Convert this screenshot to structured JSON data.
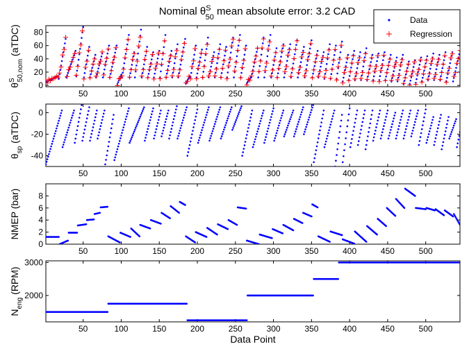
{
  "figure": {
    "title_prefix": "Nominal θ",
    "title_sup": "S",
    "title_sub": "50",
    "title_suffix": " mean absolute error: 3.2 CAD"
  },
  "colors": {
    "data": "#0000ff",
    "regression": "#ff0000",
    "axis": "#000000"
  },
  "chart_data": [
    {
      "type": "scatter",
      "id": "theta50",
      "ylabel_main": "θ",
      "ylabel_sup": "S",
      "ylabel_sub": "50,nom",
      "ylabel_suffix": " (aTDC)",
      "xlabel": "",
      "xlim": [
        1,
        545
      ],
      "ylim": [
        -2,
        90
      ],
      "xticks": [
        50,
        100,
        150,
        200,
        250,
        300,
        350,
        400,
        450,
        500
      ],
      "yticks": [
        0,
        20,
        40,
        60,
        80
      ],
      "legend": {
        "placement": "top-right",
        "entries": [
          "Data",
          "Regression"
        ]
      },
      "series": [
        {
          "name": "Data",
          "marker": "dot"
        },
        {
          "name": "Regression",
          "marker": "plus"
        }
      ],
      "segments": [
        [
          1,
          17,
          5,
          14
        ],
        [
          18,
          27,
          10,
          70
        ],
        [
          28,
          40,
          12,
          52
        ],
        [
          41,
          50,
          14,
          88
        ],
        [
          51,
          58,
          12,
          58
        ],
        [
          59,
          66,
          12,
          46
        ],
        [
          67,
          75,
          12,
          48
        ],
        [
          76,
          84,
          12,
          60
        ],
        [
          85,
          94,
          12,
          60
        ],
        [
          95,
          100,
          2,
          16
        ],
        [
          101,
          110,
          12,
          76
        ],
        [
          111,
          117,
          12,
          50
        ],
        [
          118,
          126,
          12,
          84
        ],
        [
          127,
          134,
          12,
          58
        ],
        [
          135,
          142,
          12,
          50
        ],
        [
          143,
          150,
          12,
          52
        ],
        [
          151,
          158,
          12,
          76
        ],
        [
          159,
          166,
          12,
          52
        ],
        [
          167,
          174,
          12,
          62
        ],
        [
          175,
          184,
          12,
          70
        ],
        [
          185,
          190,
          3,
          14
        ],
        [
          191,
          198,
          12,
          60
        ],
        [
          199,
          206,
          12,
          54
        ],
        [
          207,
          214,
          12,
          72
        ],
        [
          215,
          222,
          12,
          50
        ],
        [
          223,
          230,
          12,
          62
        ],
        [
          231,
          238,
          12,
          58
        ],
        [
          239,
          247,
          12,
          72
        ],
        [
          248,
          256,
          12,
          76
        ],
        [
          257,
          264,
          12,
          60
        ],
        [
          265,
          270,
          3,
          12
        ],
        [
          271,
          279,
          12,
          56
        ],
        [
          280,
          287,
          12,
          72
        ],
        [
          288,
          296,
          12,
          76
        ],
        [
          297,
          304,
          12,
          56
        ],
        [
          305,
          313,
          12,
          62
        ],
        [
          314,
          322,
          12,
          62
        ],
        [
          323,
          331,
          12,
          68
        ],
        [
          332,
          340,
          12,
          58
        ],
        [
          341,
          350,
          12,
          68
        ],
        [
          351,
          358,
          12,
          52
        ],
        [
          359,
          366,
          12,
          50
        ],
        [
          367,
          374,
          10,
          62
        ],
        [
          375,
          382,
          10,
          60
        ],
        [
          383,
          390,
          10,
          66
        ],
        [
          391,
          398,
          6,
          46
        ],
        [
          399,
          406,
          8,
          52
        ],
        [
          407,
          414,
          8,
          50
        ],
        [
          415,
          422,
          8,
          56
        ],
        [
          423,
          430,
          8,
          46
        ],
        [
          431,
          438,
          8,
          48
        ],
        [
          439,
          446,
          8,
          50
        ],
        [
          447,
          454,
          8,
          46
        ],
        [
          455,
          462,
          6,
          42
        ],
        [
          463,
          470,
          6,
          46
        ],
        [
          471,
          478,
          2,
          36
        ],
        [
          479,
          486,
          2,
          38
        ],
        [
          487,
          494,
          4,
          42
        ],
        [
          495,
          502,
          6,
          44
        ],
        [
          503,
          510,
          8,
          48
        ],
        [
          511,
          518,
          8,
          46
        ],
        [
          519,
          526,
          8,
          50
        ],
        [
          527,
          535,
          6,
          50
        ],
        [
          536,
          545,
          6,
          52
        ]
      ]
    },
    {
      "type": "scatter",
      "id": "thetasp",
      "ylabel_main": "θ",
      "ylabel_sup": "",
      "ylabel_sub": "sp",
      "ylabel_suffix": " (aTDC)",
      "xlabel": "",
      "xlim": [
        1,
        545
      ],
      "ylim": [
        -50,
        8
      ],
      "xticks": [
        50,
        100,
        150,
        200,
        250,
        300,
        350,
        400,
        450,
        500
      ],
      "yticks": [
        -40,
        -20,
        0
      ],
      "segments": [
        [
          1,
          22,
          -48,
          2
        ],
        [
          23,
          38,
          -32,
          2
        ],
        [
          39,
          48,
          -28,
          7
        ],
        [
          49,
          58,
          -26,
          5
        ],
        [
          59,
          68,
          -26,
          2
        ],
        [
          69,
          78,
          -24,
          2
        ],
        [
          79,
          90,
          -48,
          -2
        ],
        [
          91,
          110,
          -44,
          4
        ],
        [
          111,
          130,
          -28,
          5
        ],
        [
          131,
          142,
          -26,
          4
        ],
        [
          143,
          152,
          -24,
          2
        ],
        [
          153,
          162,
          -22,
          2
        ],
        [
          163,
          173,
          -24,
          6
        ],
        [
          174,
          186,
          -24,
          5
        ],
        [
          187,
          200,
          -40,
          3
        ],
        [
          201,
          215,
          -28,
          5
        ],
        [
          216,
          230,
          -26,
          5
        ],
        [
          231,
          245,
          -24,
          5
        ],
        [
          246,
          258,
          -16,
          6
        ],
        [
          259,
          272,
          -40,
          2
        ],
        [
          273,
          287,
          -32,
          2
        ],
        [
          288,
          300,
          -28,
          4
        ],
        [
          301,
          313,
          -26,
          2
        ],
        [
          314,
          326,
          -22,
          2
        ],
        [
          327,
          339,
          -22,
          5
        ],
        [
          340,
          352,
          -20,
          7
        ],
        [
          353,
          366,
          -46,
          2
        ],
        [
          367,
          380,
          -32,
          2
        ],
        [
          381,
          390,
          -50,
          -2
        ],
        [
          391,
          400,
          -46,
          4
        ],
        [
          401,
          410,
          -32,
          2
        ],
        [
          411,
          420,
          -30,
          2
        ],
        [
          421,
          430,
          -34,
          2
        ],
        [
          431,
          440,
          -26,
          2
        ],
        [
          441,
          450,
          -24,
          2
        ],
        [
          451,
          460,
          -24,
          0
        ],
        [
          461,
          470,
          -24,
          2
        ],
        [
          471,
          480,
          -24,
          2
        ],
        [
          481,
          490,
          -22,
          2
        ],
        [
          491,
          500,
          -30,
          3
        ],
        [
          501,
          510,
          -28,
          -4
        ],
        [
          511,
          520,
          -30,
          -2
        ],
        [
          521,
          530,
          -34,
          -4
        ],
        [
          531,
          540,
          -24,
          -6
        ],
        [
          541,
          545,
          -32,
          -18
        ]
      ]
    },
    {
      "type": "scatter",
      "id": "nmep",
      "ylabel_main": "NMEP (bar)",
      "ylabel_sup": "",
      "ylabel_sub": "",
      "ylabel_suffix": "",
      "xlabel": "",
      "xlim": [
        1,
        545
      ],
      "ylim": [
        0,
        10
      ],
      "xticks": [
        50,
        100,
        150,
        200,
        250,
        300,
        350,
        400,
        450,
        500
      ],
      "yticks": [
        0,
        2,
        4,
        6,
        8
      ],
      "segments": [
        [
          1,
          18,
          1.2,
          1.2
        ],
        [
          19,
          30,
          0.0,
          0.6
        ],
        [
          31,
          42,
          1.9,
          1.9
        ],
        [
          43,
          54,
          3.1,
          3.3
        ],
        [
          55,
          64,
          4.0,
          4.1
        ],
        [
          65,
          72,
          5.0,
          5.2
        ],
        [
          73,
          82,
          6.1,
          6.2
        ],
        [
          83,
          98,
          1.3,
          0.3
        ],
        [
          99,
          112,
          1.9,
          1.2
        ],
        [
          113,
          124,
          2.6,
          1.3
        ],
        [
          125,
          138,
          3.2,
          2.6
        ],
        [
          139,
          152,
          4.0,
          3.4
        ],
        [
          153,
          164,
          5.2,
          4.3
        ],
        [
          165,
          176,
          6.3,
          5.2
        ],
        [
          177,
          184,
          7.0,
          6.5
        ],
        [
          185,
          197,
          1.3,
          0.3
        ],
        [
          198,
          212,
          2.0,
          1.2
        ],
        [
          213,
          226,
          2.7,
          1.6
        ],
        [
          227,
          240,
          3.3,
          2.5
        ],
        [
          241,
          252,
          4.0,
          3.2
        ],
        [
          253,
          264,
          6.1,
          5.9
        ],
        [
          265,
          281,
          0.6,
          0.0
        ],
        [
          282,
          298,
          1.6,
          1.0
        ],
        [
          299,
          312,
          2.5,
          1.8
        ],
        [
          313,
          326,
          3.2,
          2.3
        ],
        [
          327,
          338,
          4.2,
          3.5
        ],
        [
          339,
          350,
          5.2,
          4.6
        ],
        [
          351,
          358,
          6.6,
          6.1
        ],
        [
          359,
          374,
          1.3,
          0.4
        ],
        [
          375,
          390,
          2.1,
          1.5
        ],
        [
          391,
          406,
          0.8,
          0.1
        ],
        [
          407,
          422,
          2.1,
          0.4
        ],
        [
          423,
          436,
          3.0,
          1.6
        ],
        [
          437,
          448,
          4.2,
          3.0
        ],
        [
          449,
          460,
          6.0,
          4.7
        ],
        [
          461,
          472,
          7.5,
          6.0
        ],
        [
          473,
          486,
          9.2,
          8.0
        ],
        [
          487,
          500,
          6.0,
          5.8
        ],
        [
          501,
          512,
          6.0,
          5.6
        ],
        [
          513,
          524,
          5.8,
          4.8
        ],
        [
          525,
          536,
          5.6,
          4.6
        ],
        [
          537,
          545,
          5.0,
          3.2
        ]
      ]
    },
    {
      "type": "scatter",
      "id": "neng",
      "ylabel_main": "N",
      "ylabel_sup": "",
      "ylabel_sub": "eng",
      "ylabel_suffix": " (RPM)",
      "xlabel": "Data Point",
      "xlim": [
        1,
        545
      ],
      "ylim": [
        1200,
        3050
      ],
      "xticks": [
        50,
        100,
        150,
        200,
        250,
        300,
        350,
        400,
        450,
        500
      ],
      "yticks": [
        2000,
        3000
      ],
      "segments": [
        [
          1,
          82,
          1500,
          1500
        ],
        [
          83,
          186,
          1750,
          1750
        ],
        [
          187,
          265,
          1250,
          1250
        ],
        [
          266,
          352,
          2000,
          2000
        ],
        [
          353,
          385,
          2500,
          2500
        ],
        [
          386,
          545,
          3000,
          3000
        ]
      ]
    }
  ]
}
